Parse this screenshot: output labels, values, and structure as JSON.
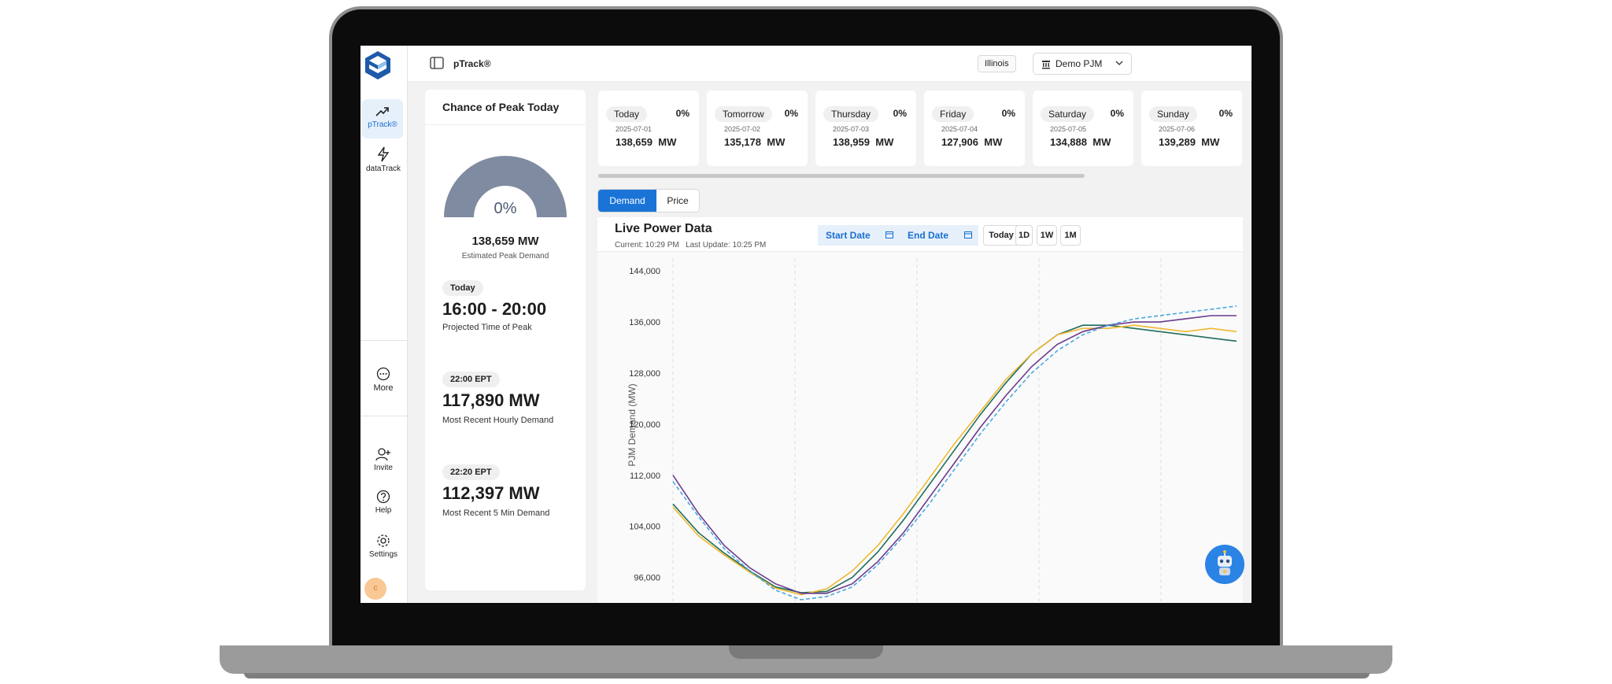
{
  "app": {
    "title": "pTrack®"
  },
  "header": {
    "region": "Illinois",
    "org": "Demo PJM"
  },
  "sidebar": {
    "items": [
      {
        "label": "pTrack®",
        "icon": "trend-up-icon"
      },
      {
        "label": "dataTrack",
        "icon": "bolt-icon"
      },
      {
        "label": "More",
        "icon": "more-icon"
      },
      {
        "label": "Invite",
        "icon": "add-user-icon"
      },
      {
        "label": "Help",
        "icon": "help-icon"
      },
      {
        "label": "Settings",
        "icon": "gear-icon"
      }
    ],
    "avatar": "c"
  },
  "chance": {
    "title": "Chance of Peak Today",
    "percent": "0%",
    "percent_value": 0,
    "estimated_mw": "138,659 MW",
    "estimated_label": "Estimated Peak Demand",
    "today_tag": "Today",
    "peak_time": "16:00 - 20:00",
    "peak_time_label": "Projected Time of Peak",
    "hourly_tag": "22:00 EPT",
    "hourly_value": "117,890 MW",
    "hourly_label": "Most Recent Hourly Demand",
    "fivemin_tag": "22:20 EPT",
    "fivemin_value": "112,397 MW",
    "fivemin_label": "Most Recent 5 Min Demand"
  },
  "forecast_days": [
    {
      "name": "Today",
      "pct": "0%",
      "date": "2025-07-01",
      "mw": "138,659",
      "unit": "MW"
    },
    {
      "name": "Tomorrow",
      "pct": "0%",
      "date": "2025-07-02",
      "mw": "135,178",
      "unit": "MW"
    },
    {
      "name": "Thursday",
      "pct": "0%",
      "date": "2025-07-03",
      "mw": "138,959",
      "unit": "MW"
    },
    {
      "name": "Friday",
      "pct": "0%",
      "date": "2025-07-04",
      "mw": "127,906",
      "unit": "MW"
    },
    {
      "name": "Saturday",
      "pct": "0%",
      "date": "2025-07-05",
      "mw": "134,888",
      "unit": "MW"
    },
    {
      "name": "Sunday",
      "pct": "0%",
      "date": "2025-07-06",
      "mw": "139,289",
      "unit": "MW"
    }
  ],
  "tabs": [
    "Demand",
    "Price"
  ],
  "live": {
    "title": "Live Power Data",
    "current": "Current: 10:29 PM",
    "last_update": "Last Update: 10:25 PM",
    "start_date": "Start Date",
    "end_date": "End Date",
    "ranges": [
      "Today",
      "1D",
      "1W",
      "1M"
    ]
  },
  "colors": {
    "accent": "#1a74d8",
    "gauge": "#7f8ba0"
  },
  "chart_data": {
    "type": "line",
    "ylabel": "PJM Demand (MW)",
    "yticks": [
      "144,000",
      "136,000",
      "128,000",
      "120,000",
      "112,000",
      "104,000",
      "96,000"
    ],
    "yrange": [
      92000,
      146000
    ],
    "x": [
      0,
      1,
      2,
      3,
      4,
      5,
      6,
      7,
      8,
      9,
      10,
      11,
      12,
      13,
      14,
      15,
      16,
      17,
      18,
      19,
      20,
      21,
      22
    ],
    "series": [
      {
        "color": "#1f6e5c",
        "values": [
          107500,
          103000,
          99800,
          97000,
          94500,
          93600,
          93800,
          96000,
          100000,
          105000,
          110500,
          116000,
          121500,
          126500,
          131000,
          134000,
          135500,
          135500,
          135000,
          134500,
          134000,
          133500,
          133000
        ]
      },
      {
        "color": "#f0b830",
        "values": [
          107000,
          102500,
          99500,
          96800,
          94300,
          93300,
          94200,
          97000,
          101000,
          106000,
          111500,
          117000,
          122000,
          127000,
          131000,
          134000,
          135000,
          135000,
          135500,
          135000,
          134500,
          135000,
          134500
        ]
      },
      {
        "color": "#6a3b8e",
        "values": [
          112000,
          106000,
          101000,
          97500,
          95000,
          93500,
          93500,
          95000,
          98500,
          103000,
          108500,
          114000,
          119500,
          124500,
          129000,
          132500,
          134500,
          135500,
          136000,
          136000,
          136500,
          137000,
          137000
        ]
      },
      {
        "color": "#4aa8e0",
        "values": [
          111000,
          105500,
          100500,
          97000,
          94000,
          92500,
          93000,
          94500,
          98000,
          102500,
          107500,
          113000,
          118500,
          123500,
          128000,
          131500,
          134000,
          135500,
          136500,
          137000,
          137500,
          138000,
          138500
        ],
        "dashed": true
      }
    ]
  }
}
